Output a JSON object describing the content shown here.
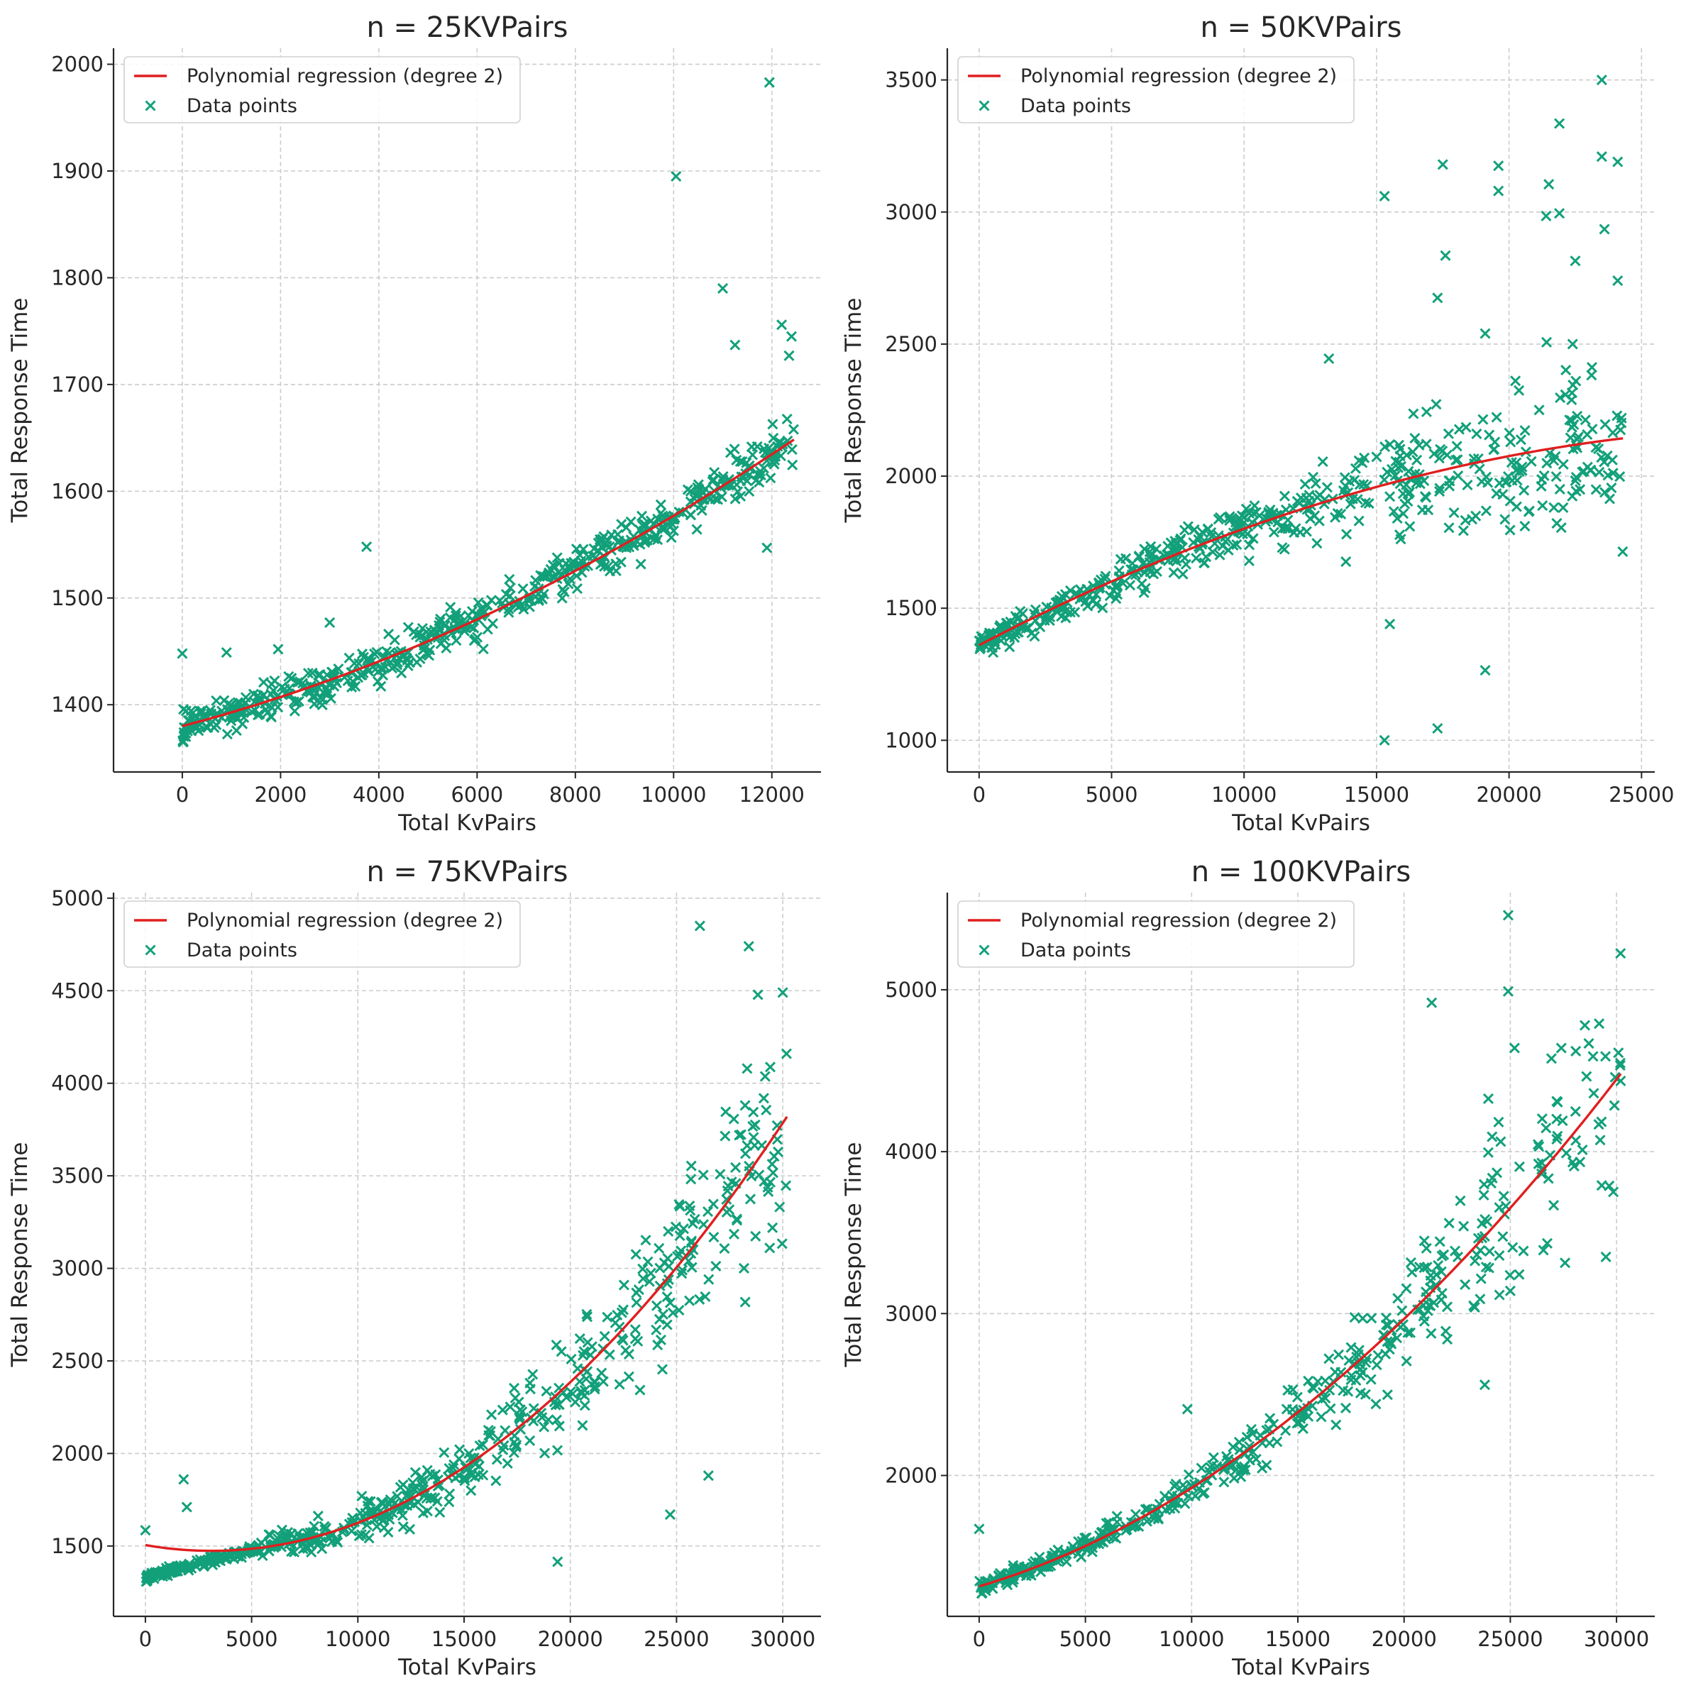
{
  "colors": {
    "fit": "#e01f1f",
    "points": "#12a07a",
    "text": "#262626",
    "grid": "#cccccc"
  },
  "chart_data": [
    {
      "type": "scatter",
      "title": "n = 25KVPairs",
      "xlabel": "Total KvPairs",
      "ylabel": "Total Response Time",
      "xlim": [
        -1400,
        13000
      ],
      "ylim": [
        1337,
        2015
      ],
      "xticks": [
        0,
        2000,
        4000,
        6000,
        8000,
        10000,
        12000
      ],
      "yticks": [
        1400,
        1500,
        1600,
        1700,
        1800,
        1900,
        2000
      ],
      "xtick_labels": [
        "0",
        "2000",
        "4000",
        "6000",
        "8000",
        "10000",
        "12000"
      ],
      "ytick_labels": [
        "1400",
        "1500",
        "1600",
        "1700",
        "1800",
        "1900",
        "2000"
      ],
      "legend": {
        "position": "top-left",
        "entries": [
          "Polynomial regression (degree 2)",
          "Data points"
        ]
      },
      "series": [
        {
          "name": "Polynomial regression (degree 2)",
          "kind": "line",
          "x_range": [
            0,
            12450
          ],
          "coefficients": [
            1380,
            0.0121,
            7.6e-07
          ]
        },
        {
          "name": "Data points",
          "kind": "scatter",
          "n": 560,
          "x_range": [
            0,
            12450
          ],
          "spread": [
            0.018,
            0.022
          ],
          "outliers": [
            [
              0,
              1448
            ],
            [
              900,
              1449
            ],
            [
              1950,
              1452
            ],
            [
              3000,
              1477
            ],
            [
              3750,
              1548
            ],
            [
              10050,
              1895
            ],
            [
              11000,
              1790
            ],
            [
              11250,
              1737
            ],
            [
              11950,
              1983
            ],
            [
              12200,
              1756
            ],
            [
              12400,
              1745
            ],
            [
              12350,
              1727
            ],
            [
              11900,
              1547
            ]
          ]
        }
      ]
    },
    {
      "type": "scatter",
      "title": "n = 50KVPairs",
      "xlabel": "Total KvPairs",
      "ylabel": "Total Response Time",
      "xlim": [
        -1200,
        25500
      ],
      "ylim": [
        880,
        3620
      ],
      "xticks": [
        0,
        5000,
        10000,
        15000,
        20000,
        25000
      ],
      "yticks": [
        1000,
        1500,
        2000,
        2500,
        3000,
        3500
      ],
      "xtick_labels": [
        "0",
        "5000",
        "10000",
        "15000",
        "20000",
        "25000"
      ],
      "ytick_labels": [
        "1000",
        "1500",
        "2000",
        "2500",
        "3000",
        "3500"
      ],
      "legend": {
        "position": "top-left",
        "entries": [
          "Polynomial regression (degree 2)",
          "Data points"
        ]
      },
      "series": [
        {
          "name": "Polynomial regression (degree 2)",
          "kind": "line",
          "x_range": [
            0,
            24300
          ],
          "coefficients": [
            1360,
            0.0524,
            -8.3e-07
          ]
        },
        {
          "name": "Data points",
          "kind": "scatter",
          "n": 520,
          "x_range": [
            0,
            24300
          ],
          "spread": [
            0.05,
            0.25
          ],
          "outliers": [
            [
              15300,
              1000
            ],
            [
              17300,
              1045
            ],
            [
              19100,
              1265
            ],
            [
              15500,
              1440
            ],
            [
              13200,
              2445
            ],
            [
              15300,
              3060
            ],
            [
              17500,
              3180
            ],
            [
              17600,
              2835
            ],
            [
              17300,
              2675
            ],
            [
              19100,
              2540
            ],
            [
              19600,
              3175
            ],
            [
              19600,
              3080
            ],
            [
              21900,
              3335
            ],
            [
              21500,
              3105
            ],
            [
              21900,
              2995
            ],
            [
              21400,
              2985
            ],
            [
              23500,
              3500
            ],
            [
              23500,
              3210
            ],
            [
              24100,
              3190
            ],
            [
              23600,
              2935
            ],
            [
              24100,
              2740
            ],
            [
              22500,
              2815
            ],
            [
              22400,
              2500
            ]
          ]
        }
      ]
    },
    {
      "type": "scatter",
      "title": "n = 75KVPairs",
      "xlabel": "Total KvPairs",
      "ylabel": "Total Response Time",
      "xlim": [
        -1500,
        31800
      ],
      "ylim": [
        1120,
        5030
      ],
      "xticks": [
        0,
        5000,
        10000,
        15000,
        20000,
        25000,
        30000
      ],
      "yticks": [
        1500,
        2000,
        2500,
        3000,
        3500,
        4000,
        4500,
        5000
      ],
      "xtick_labels": [
        "0",
        "5000",
        "10000",
        "15000",
        "20000",
        "25000",
        "30000"
      ],
      "ytick_labels": [
        "1500",
        "2000",
        "2500",
        "3000",
        "3500",
        "4000",
        "4500",
        "5000"
      ],
      "legend": {
        "position": "top-left",
        "entries": [
          "Polynomial regression (degree 2)",
          "Data points"
        ]
      },
      "series": [
        {
          "name": "Polynomial regression (degree 2)",
          "kind": "line",
          "x_range": [
            0,
            30200
          ],
          "coefficients": [
            1505,
            -0.02,
            3.2e-06
          ]
        },
        {
          "name": "Data points",
          "kind": "scatter",
          "n": 560,
          "x_range": [
            0,
            30200
          ],
          "spread": [
            0.06,
            0.3
          ],
          "outliers": [
            [
              0,
              1585
            ],
            [
              1800,
              1860
            ],
            [
              1950,
              1710
            ],
            [
              19400,
              1415
            ],
            [
              26100,
              4850
            ],
            [
              28400,
              4740
            ],
            [
              30000,
              4490
            ],
            [
              24700,
              1670
            ],
            [
              26500,
              1880
            ]
          ]
        }
      ]
    },
    {
      "type": "scatter",
      "title": "n = 100KVPairs",
      "xlabel": "Total KvPairs",
      "ylabel": "Total Response Time",
      "xlim": [
        -1500,
        31800
      ],
      "ylim": [
        1130,
        5600
      ],
      "xticks": [
        0,
        5000,
        10000,
        15000,
        20000,
        25000,
        30000
      ],
      "yticks": [
        2000,
        3000,
        4000,
        5000
      ],
      "xtick_labels": [
        "0",
        "5000",
        "10000",
        "15000",
        "20000",
        "25000",
        "30000"
      ],
      "ytick_labels": [
        "2000",
        "3000",
        "4000",
        "5000"
      ],
      "legend": {
        "position": "top-left",
        "entries": [
          "Polynomial regression (degree 2)",
          "Data points"
        ]
      },
      "series": [
        {
          "name": "Polynomial regression (degree 2)",
          "kind": "line",
          "x_range": [
            0,
            30200
          ],
          "coefficients": [
            1315,
            0.039,
            2.18e-06
          ]
        },
        {
          "name": "Data points",
          "kind": "scatter",
          "n": 450,
          "x_range": [
            0,
            30200
          ],
          "spread": [
            0.05,
            0.28
          ],
          "outliers": [
            [
              0,
              1670
            ],
            [
              24900,
              5460
            ],
            [
              24900,
              4990
            ],
            [
              21300,
              4920
            ],
            [
              25200,
              4640
            ],
            [
              27400,
              4640
            ],
            [
              9800,
              2410
            ],
            [
              23800,
              2560
            ],
            [
              25000,
              3140
            ],
            [
              29500,
              3350
            ]
          ]
        }
      ]
    }
  ]
}
